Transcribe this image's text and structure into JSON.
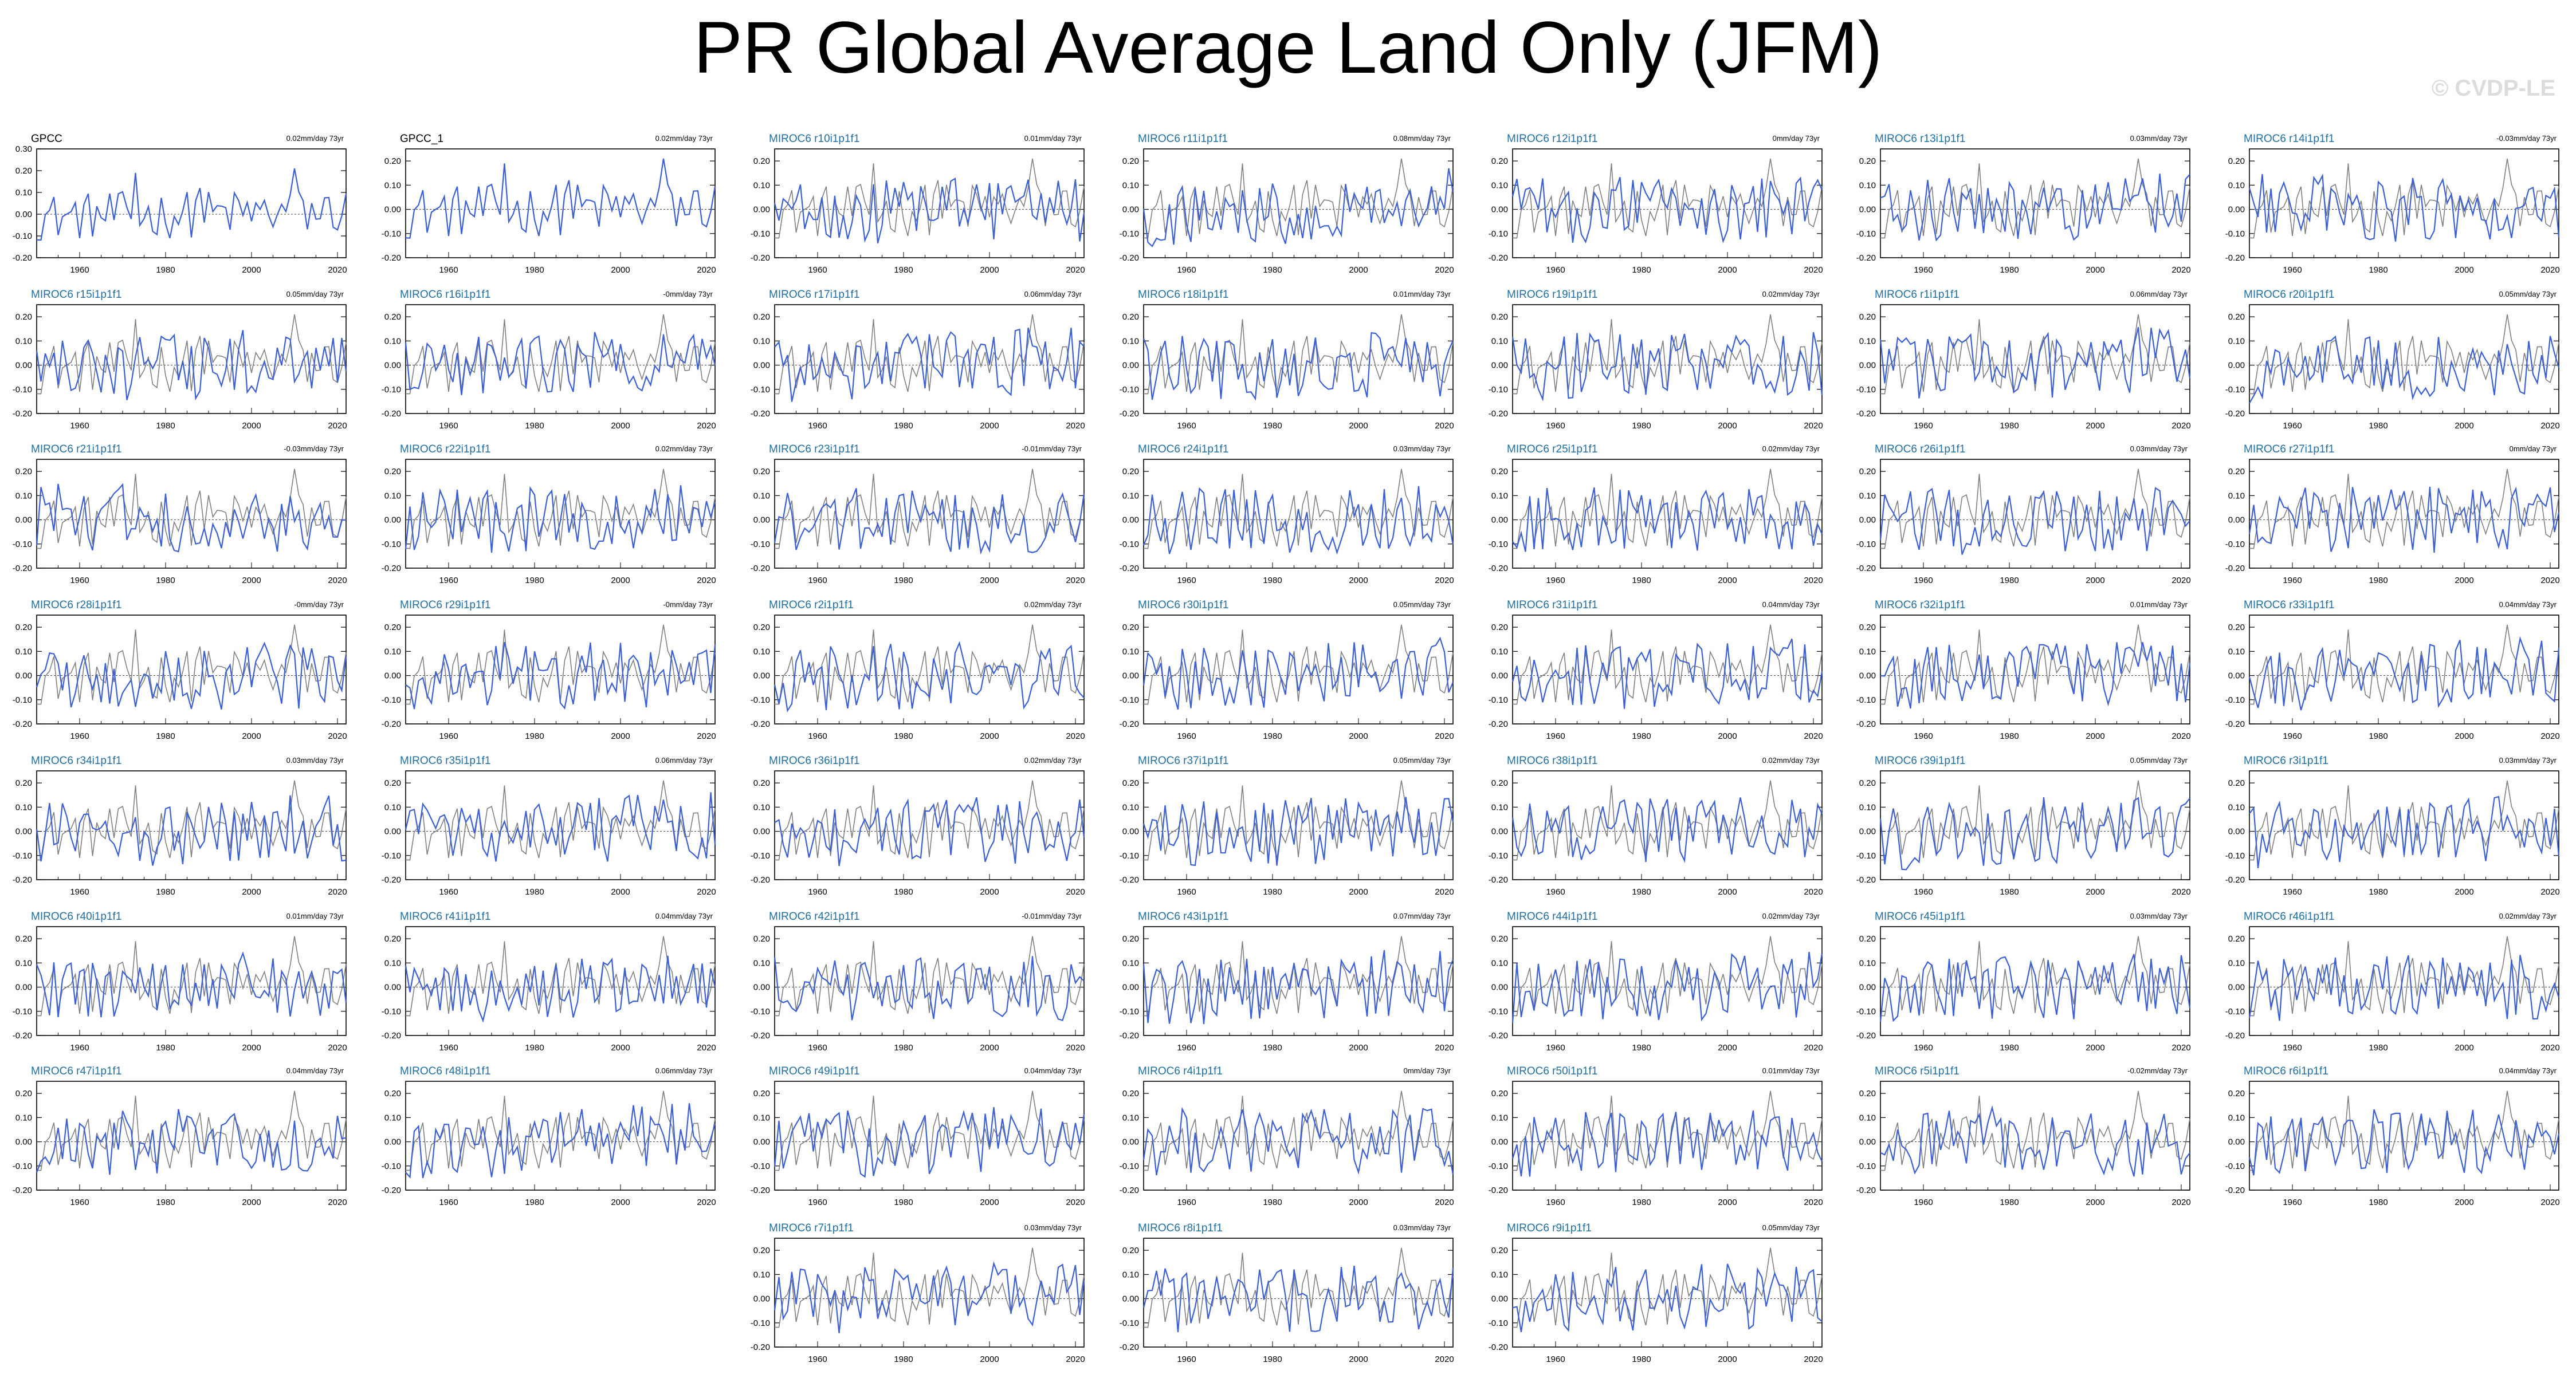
{
  "title": "PR Global Average Land Only (JFM)",
  "watermark": "© CVDP-LE",
  "colors": {
    "model": "#3b5fd4",
    "obs": "#808080",
    "obs_title": "#000000",
    "model_title": "#1f6fa0"
  },
  "chart_data": {
    "type": "line",
    "xlim": [
      1950,
      2022
    ],
    "x_ticks": [
      1960,
      1980,
      2000,
      2020
    ],
    "y_ticks": [
      "0.30",
      "0.20",
      "0.10",
      "0.00",
      "-0.10",
      "-0.20"
    ],
    "panels": [
      {
        "title": "GPCC",
        "trend": "0.02mm/day 73yr",
        "ylim": [
          -0.2,
          0.3
        ],
        "kind": "obs"
      },
      {
        "title": "GPCC_1",
        "trend": "0.02mm/day 73yr",
        "ylim": [
          -0.2,
          0.25
        ],
        "kind": "obs"
      },
      {
        "title": "MIROC6 r10i1p1f1",
        "trend": "0.01mm/day 73yr",
        "ylim": [
          -0.2,
          0.25
        ]
      },
      {
        "title": "MIROC6 r11i1p1f1",
        "trend": "0.08mm/day 73yr",
        "ylim": [
          -0.2,
          0.25
        ]
      },
      {
        "title": "MIROC6 r12i1p1f1",
        "trend": "0mm/day 73yr",
        "ylim": [
          -0.2,
          0.25
        ]
      },
      {
        "title": "MIROC6 r13i1p1f1",
        "trend": "0.03mm/day 73yr",
        "ylim": [
          -0.2,
          0.25
        ]
      },
      {
        "title": "MIROC6 r14i1p1f1",
        "trend": "-0.03mm/day 73yr",
        "ylim": [
          -0.2,
          0.25
        ]
      },
      {
        "title": "MIROC6 r15i1p1f1",
        "trend": "0.05mm/day 73yr",
        "ylim": [
          -0.2,
          0.25
        ]
      },
      {
        "title": "MIROC6 r16i1p1f1",
        "trend": "-0mm/day 73yr",
        "ylim": [
          -0.2,
          0.25
        ]
      },
      {
        "title": "MIROC6 r17i1p1f1",
        "trend": "0.06mm/day 73yr",
        "ylim": [
          -0.2,
          0.25
        ]
      },
      {
        "title": "MIROC6 r18i1p1f1",
        "trend": "0.01mm/day 73yr",
        "ylim": [
          -0.2,
          0.25
        ]
      },
      {
        "title": "MIROC6 r19i1p1f1",
        "trend": "0.02mm/day 73yr",
        "ylim": [
          -0.2,
          0.25
        ]
      },
      {
        "title": "MIROC6 r1i1p1f1",
        "trend": "0.06mm/day 73yr",
        "ylim": [
          -0.2,
          0.25
        ]
      },
      {
        "title": "MIROC6 r20i1p1f1",
        "trend": "0.05mm/day 73yr",
        "ylim": [
          -0.2,
          0.25
        ]
      },
      {
        "title": "MIROC6 r21i1p1f1",
        "trend": "-0.03mm/day 73yr",
        "ylim": [
          -0.2,
          0.25
        ]
      },
      {
        "title": "MIROC6 r22i1p1f1",
        "trend": "0.02mm/day 73yr",
        "ylim": [
          -0.2,
          0.25
        ]
      },
      {
        "title": "MIROC6 r23i1p1f1",
        "trend": "-0.01mm/day 73yr",
        "ylim": [
          -0.2,
          0.25
        ]
      },
      {
        "title": "MIROC6 r24i1p1f1",
        "trend": "0.03mm/day 73yr",
        "ylim": [
          -0.2,
          0.25
        ]
      },
      {
        "title": "MIROC6 r25i1p1f1",
        "trend": "0.02mm/day 73yr",
        "ylim": [
          -0.2,
          0.25
        ]
      },
      {
        "title": "MIROC6 r26i1p1f1",
        "trend": "0.03mm/day 73yr",
        "ylim": [
          -0.2,
          0.25
        ]
      },
      {
        "title": "MIROC6 r27i1p1f1",
        "trend": "0mm/day 73yr",
        "ylim": [
          -0.2,
          0.25
        ]
      },
      {
        "title": "MIROC6 r28i1p1f1",
        "trend": "-0mm/day 73yr",
        "ylim": [
          -0.2,
          0.25
        ]
      },
      {
        "title": "MIROC6 r29i1p1f1",
        "trend": "-0mm/day 73yr",
        "ylim": [
          -0.2,
          0.25
        ]
      },
      {
        "title": "MIROC6 r2i1p1f1",
        "trend": "0.02mm/day 73yr",
        "ylim": [
          -0.2,
          0.25
        ]
      },
      {
        "title": "MIROC6 r30i1p1f1",
        "trend": "0.05mm/day 73yr",
        "ylim": [
          -0.2,
          0.25
        ]
      },
      {
        "title": "MIROC6 r31i1p1f1",
        "trend": "0.04mm/day 73yr",
        "ylim": [
          -0.2,
          0.25
        ]
      },
      {
        "title": "MIROC6 r32i1p1f1",
        "trend": "0.01mm/day 73yr",
        "ylim": [
          -0.2,
          0.25
        ]
      },
      {
        "title": "MIROC6 r33i1p1f1",
        "trend": "0.04mm/day 73yr",
        "ylim": [
          -0.2,
          0.25
        ]
      },
      {
        "title": "MIROC6 r34i1p1f1",
        "trend": "0.03mm/day 73yr",
        "ylim": [
          -0.2,
          0.25
        ]
      },
      {
        "title": "MIROC6 r35i1p1f1",
        "trend": "0.06mm/day 73yr",
        "ylim": [
          -0.2,
          0.25
        ]
      },
      {
        "title": "MIROC6 r36i1p1f1",
        "trend": "0.02mm/day 73yr",
        "ylim": [
          -0.2,
          0.25
        ]
      },
      {
        "title": "MIROC6 r37i1p1f1",
        "trend": "0.05mm/day 73yr",
        "ylim": [
          -0.2,
          0.25
        ]
      },
      {
        "title": "MIROC6 r38i1p1f1",
        "trend": "0.02mm/day 73yr",
        "ylim": [
          -0.2,
          0.25
        ]
      },
      {
        "title": "MIROC6 r39i1p1f1",
        "trend": "0.05mm/day 73yr",
        "ylim": [
          -0.2,
          0.25
        ]
      },
      {
        "title": "MIROC6 r3i1p1f1",
        "trend": "0.03mm/day 73yr",
        "ylim": [
          -0.2,
          0.25
        ]
      },
      {
        "title": "MIROC6 r40i1p1f1",
        "trend": "0.01mm/day 73yr",
        "ylim": [
          -0.2,
          0.25
        ]
      },
      {
        "title": "MIROC6 r41i1p1f1",
        "trend": "0.04mm/day 73yr",
        "ylim": [
          -0.2,
          0.25
        ]
      },
      {
        "title": "MIROC6 r42i1p1f1",
        "trend": "-0.01mm/day 73yr",
        "ylim": [
          -0.2,
          0.25
        ]
      },
      {
        "title": "MIROC6 r43i1p1f1",
        "trend": "0.07mm/day 73yr",
        "ylim": [
          -0.2,
          0.25
        ]
      },
      {
        "title": "MIROC6 r44i1p1f1",
        "trend": "0.02mm/day 73yr",
        "ylim": [
          -0.2,
          0.25
        ]
      },
      {
        "title": "MIROC6 r45i1p1f1",
        "trend": "0.03mm/day 73yr",
        "ylim": [
          -0.2,
          0.25
        ]
      },
      {
        "title": "MIROC6 r46i1p1f1",
        "trend": "0.02mm/day 73yr",
        "ylim": [
          -0.2,
          0.25
        ]
      },
      {
        "title": "MIROC6 r47i1p1f1",
        "trend": "0.04mm/day 73yr",
        "ylim": [
          -0.2,
          0.25
        ]
      },
      {
        "title": "MIROC6 r48i1p1f1",
        "trend": "0.06mm/day 73yr",
        "ylim": [
          -0.2,
          0.25
        ]
      },
      {
        "title": "MIROC6 r49i1p1f1",
        "trend": "0.04mm/day 73yr",
        "ylim": [
          -0.2,
          0.25
        ]
      },
      {
        "title": "MIROC6 r4i1p1f1",
        "trend": "0mm/day 73yr",
        "ylim": [
          -0.2,
          0.25
        ]
      },
      {
        "title": "MIROC6 r50i1p1f1",
        "trend": "0.01mm/day 73yr",
        "ylim": [
          -0.2,
          0.25
        ]
      },
      {
        "title": "MIROC6 r5i1p1f1",
        "trend": "-0.02mm/day 73yr",
        "ylim": [
          -0.2,
          0.25
        ]
      },
      {
        "title": "MIROC6 r6i1p1f1",
        "trend": "0.04mm/day 73yr",
        "ylim": [
          -0.2,
          0.25
        ]
      },
      {
        "title": "MIROC6 r7i1p1f1",
        "trend": "0.03mm/day 73yr",
        "ylim": [
          -0.2,
          0.25
        ]
      },
      {
        "title": "MIROC6 r8i1p1f1",
        "trend": "0.03mm/day 73yr",
        "ylim": [
          -0.2,
          0.25
        ]
      },
      {
        "title": "MIROC6 r9i1p1f1",
        "trend": "0.05mm/day 73yr",
        "ylim": [
          -0.2,
          0.25
        ]
      }
    ]
  }
}
